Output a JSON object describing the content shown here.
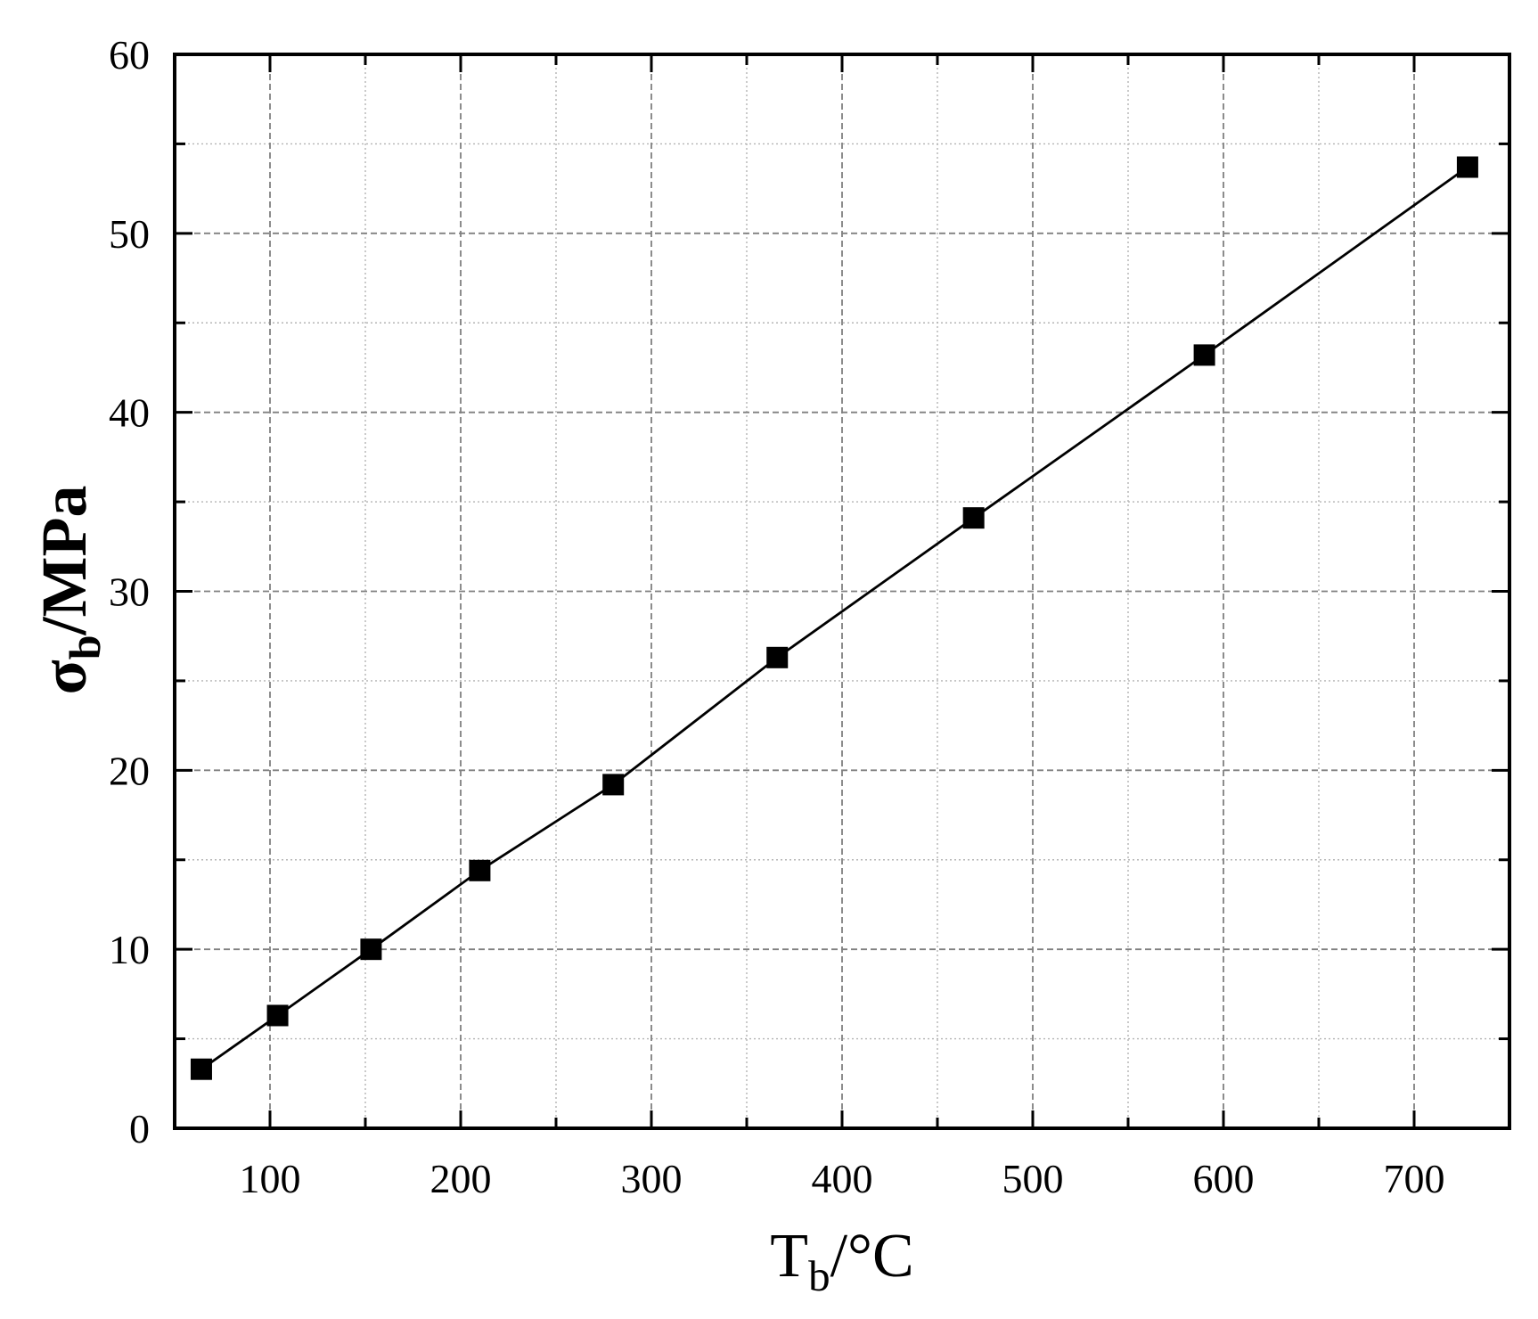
{
  "chart_data": {
    "type": "line",
    "marker": "square",
    "xlabel": {
      "main": "T",
      "sub": "b",
      "rest": "/°C"
    },
    "ylabel": {
      "main": "σ",
      "sub": "b",
      "rest": "/MPa"
    },
    "xlim": [
      50,
      750
    ],
    "ylim": [
      0,
      60
    ],
    "xticks": [
      100,
      200,
      300,
      400,
      500,
      600,
      700
    ],
    "yticks": [
      0,
      10,
      20,
      30,
      40,
      50,
      60
    ],
    "grid": true,
    "minor_grid": true,
    "series": [
      {
        "x": [
          64,
          104,
          153,
          210,
          280,
          366,
          469,
          590,
          728
        ],
        "y": [
          3.3,
          6.3,
          10.0,
          14.4,
          19.2,
          26.3,
          34.1,
          43.2,
          53.7
        ],
        "color": "#000000"
      }
    ],
    "colors": {
      "frame": "#000000",
      "grid_major": "#808080",
      "grid_minor": "#b4b4b4",
      "background": "#ffffff"
    }
  }
}
